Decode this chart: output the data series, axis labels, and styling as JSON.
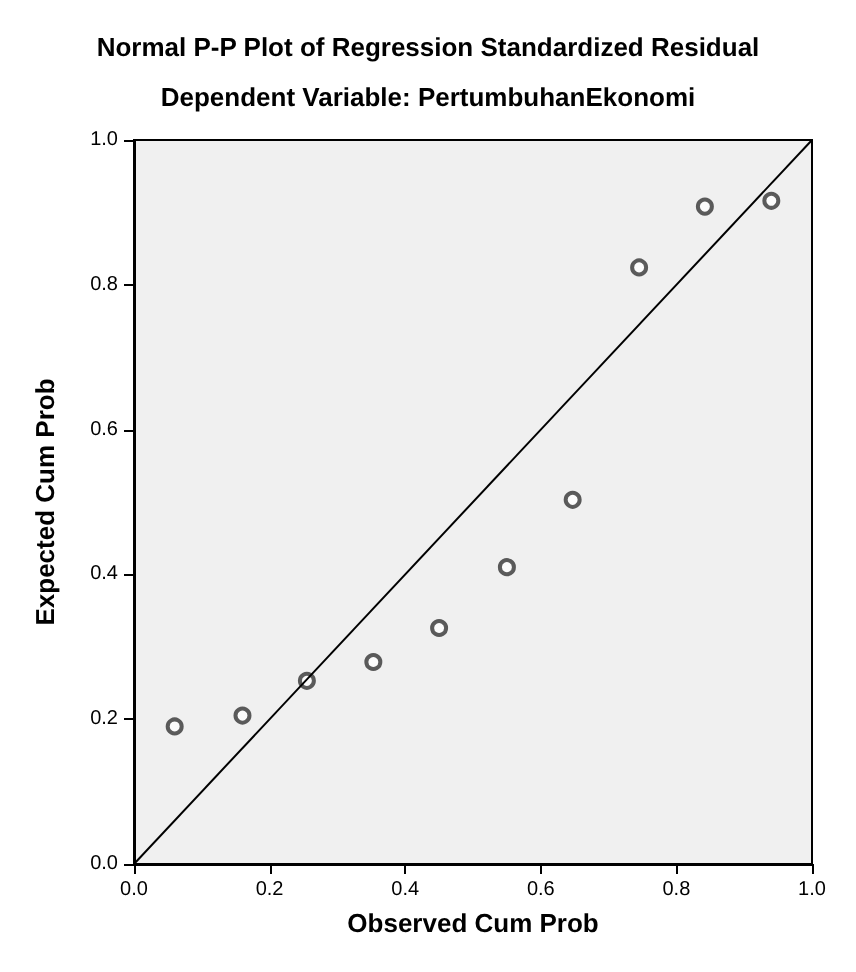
{
  "chart_data": {
    "type": "scatter",
    "title": "Normal P-P Plot of Regression Standardized Residual",
    "subtitle": "Dependent Variable: PertumbuhanEkonomi",
    "xlabel": "Observed Cum Prob",
    "ylabel": "Expected Cum Prob",
    "series": [
      {
        "type": "scatter",
        "color": "#333333",
        "marker": "circle",
        "x": [
          0.06,
          0.16,
          0.255,
          0.353,
          0.45,
          0.55,
          0.647,
          0.745,
          0.842,
          0.94
        ],
        "values": [
          0.19,
          0.205,
          0.253,
          0.279,
          0.326,
          0.41,
          0.503,
          0.824,
          0.908,
          0.916
        ]
      },
      {
        "type": "line",
        "color": "#000000",
        "marker": "none",
        "x": [
          0,
          1
        ],
        "values": [
          0,
          1
        ]
      }
    ],
    "xlim": [
      0,
      1
    ],
    "ylim": [
      0,
      1
    ],
    "xticks": [
      {
        "value": 0,
        "label": "0.0"
      },
      {
        "value": 0.2,
        "label": "0.2"
      },
      {
        "value": 0.4,
        "label": "0.4"
      },
      {
        "value": 0.6,
        "label": "0.6"
      },
      {
        "value": 0.8,
        "label": "0.8"
      },
      {
        "value": 1,
        "label": "1.0"
      }
    ],
    "yticks": [
      {
        "value": 0,
        "label": "0.0"
      },
      {
        "value": 0.2,
        "label": "0.2"
      },
      {
        "value": 0.4,
        "label": "0.4"
      },
      {
        "value": 0.6,
        "label": "0.6"
      },
      {
        "value": 0.8,
        "label": "0.8"
      },
      {
        "value": 1,
        "label": "1.0"
      }
    ],
    "grid": false
  }
}
